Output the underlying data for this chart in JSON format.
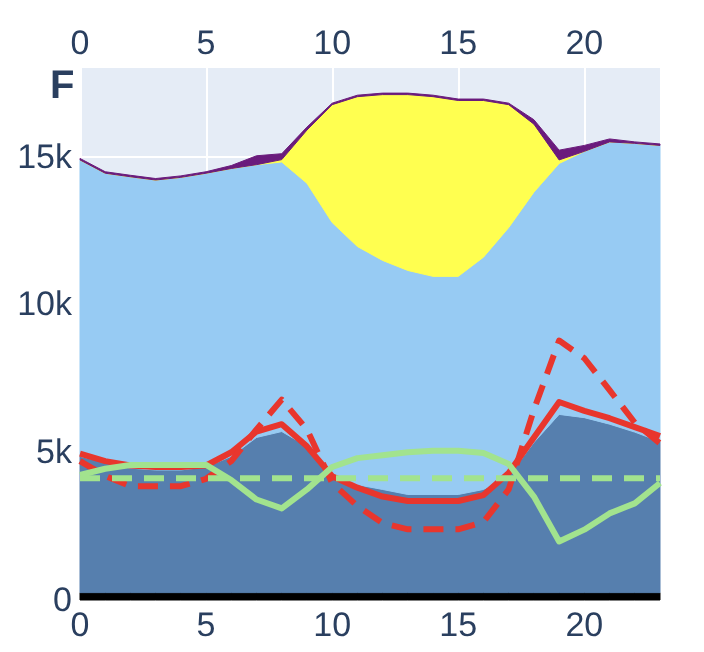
{
  "chart_data": {
    "type": "area",
    "title": "F",
    "stacked": true,
    "grid": true,
    "x": [
      0,
      1,
      2,
      3,
      4,
      5,
      6,
      7,
      8,
      9,
      10,
      11,
      12,
      13,
      14,
      15,
      16,
      17,
      18,
      19,
      20,
      21,
      22,
      23
    ],
    "xlim": [
      0,
      23
    ],
    "xticks": [
      0,
      5,
      10,
      15,
      20
    ],
    "x2lim": [
      0,
      23
    ],
    "x2ticks": [
      0,
      5,
      10,
      15,
      20
    ],
    "ylim": [
      0,
      18000
    ],
    "yticks": [
      0,
      {
        "value": 5000,
        "label": "5k"
      },
      {
        "value": 10000,
        "label": "10k"
      },
      {
        "value": 15000,
        "label": "15k"
      }
    ],
    "series": [
      {
        "color": "#000000",
        "values": [
          250,
          250,
          250,
          250,
          250,
          250,
          250,
          250,
          250,
          250,
          250,
          250,
          250,
          250,
          250,
          250,
          250,
          250,
          250,
          250,
          250,
          250,
          250,
          250
        ]
      },
      {
        "color": "#567fae",
        "values": [
          4610,
          4410,
          4210,
          4150,
          4150,
          4250,
          4610,
          5250,
          5450,
          4950,
          4010,
          3650,
          3490,
          3320,
          3320,
          3320,
          3490,
          3940,
          5080,
          6030,
          5920,
          5700,
          5430,
          5110
        ]
      },
      {
        "color": "#97cbf3",
        "values": [
          10030,
          9780,
          9860,
          9810,
          9900,
          9940,
          9740,
          9230,
          9120,
          8900,
          8510,
          8060,
          7750,
          7580,
          7380,
          7380,
          7860,
          8410,
          8470,
          8490,
          9010,
          9550,
          9770,
          10020
        ]
      },
      {
        "color": "#ffff50",
        "values": [
          0,
          0,
          0,
          0,
          0,
          0,
          0,
          0,
          80,
          1800,
          3990,
          5070,
          5610,
          5950,
          6080,
          5950,
          5300,
          4160,
          2300,
          120,
          0,
          0,
          0,
          0
        ]
      },
      {
        "color": "#6a1b7c",
        "values": [
          50,
          50,
          50,
          50,
          50,
          50,
          100,
          300,
          200,
          100,
          50,
          50,
          50,
          50,
          50,
          50,
          50,
          50,
          150,
          330,
          200,
          100,
          50,
          50
        ]
      },
      {
        "type": "line",
        "color": "#e8362d",
        "line_style": "solid",
        "values": [
          4950,
          4700,
          4550,
          4500,
          4500,
          4550,
          5000,
          5700,
          5950,
          5200,
          4190,
          3800,
          3500,
          3350,
          3350,
          3350,
          3550,
          4300,
          5500,
          6700,
          6400,
          6150,
          5850,
          5550
        ]
      },
      {
        "type": "line",
        "color": "#e8362d",
        "line_style": "dashed",
        "values": [
          4700,
          4200,
          3850,
          3850,
          3850,
          4100,
          4700,
          5770,
          6780,
          5770,
          3960,
          3180,
          2600,
          2390,
          2390,
          2390,
          2640,
          3740,
          6440,
          8780,
          8180,
          7100,
          6000,
          5300
        ]
      },
      {
        "type": "line",
        "color": "#a2e38e",
        "line_style": "solid",
        "values": [
          4230,
          4440,
          4570,
          4570,
          4570,
          4570,
          4060,
          3400,
          3100,
          3740,
          4500,
          4800,
          4900,
          5000,
          5050,
          5050,
          4970,
          4600,
          3500,
          1980,
          2380,
          2930,
          3270,
          3960
        ]
      },
      {
        "type": "line",
        "color": "#a2e38e",
        "line_style": "dashed",
        "values": [
          4120,
          4120,
          4120,
          4120,
          4120,
          4120,
          4120,
          4120,
          4120,
          4120,
          4120,
          4120,
          4120,
          4120,
          4120,
          4120,
          4120,
          4120,
          4120,
          4120,
          4120,
          4120,
          4120,
          4120
        ]
      }
    ]
  }
}
